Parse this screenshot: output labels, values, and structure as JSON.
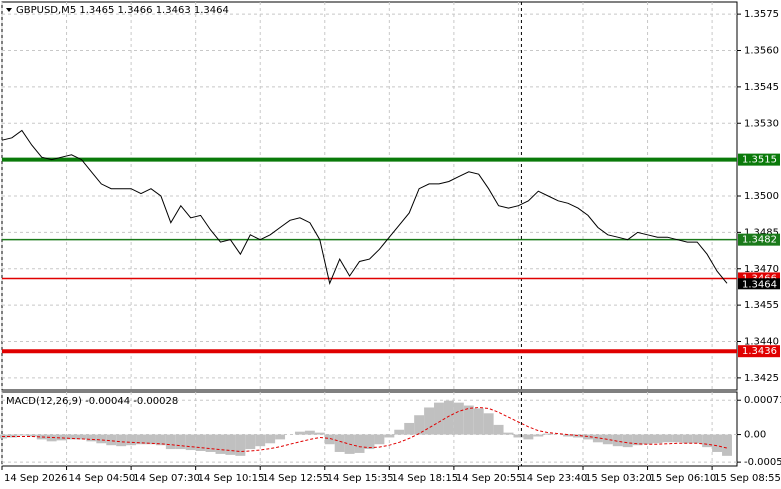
{
  "chart_data": {
    "type": "line",
    "title": "GBPUSD,M5  1.3465 1.3466 1.3463 1.3464",
    "color": "#000000",
    "grid": true,
    "xlim": [
      0,
      73
    ],
    "xticks": [
      {
        "value": 0,
        "label": "14 Sep 2026"
      },
      {
        "value": 6.5,
        "label": "14 Sep 04:50"
      },
      {
        "value": 13,
        "label": "14 Sep 07:30"
      },
      {
        "value": 19.5,
        "label": "14 Sep 10:15"
      },
      {
        "value": 26,
        "label": "14 Sep 12:55"
      },
      {
        "value": 32.5,
        "label": "14 Sep 15:35"
      },
      {
        "value": 39,
        "label": "14 Sep 18:15"
      },
      {
        "value": 45.5,
        "label": "14 Sep 20:55"
      },
      {
        "value": 52,
        "label": "14 Sep 23:40"
      },
      {
        "value": 58.5,
        "label": "15 Sep 03:20"
      },
      {
        "value": 65,
        "label": "15 Sep 06:10"
      },
      {
        "value": 71.5,
        "label": "15 Sep 08:55"
      }
    ],
    "ylim": [
      1.342,
      1.358
    ],
    "yticks": [
      1.3575,
      {
        "value": 1.356,
        "label": "1.3560"
      },
      1.3545,
      {
        "value": 1.353,
        "label": "1.3530"
      },
      {
        "value": 1.35,
        "label": "1.3500"
      },
      1.3485,
      {
        "value": 1.347,
        "label": "1.3470"
      },
      1.3455,
      {
        "value": 1.344,
        "label": "1.3440"
      },
      1.3425
    ],
    "vline_x": 52.3,
    "values": [
      1.3523,
      1.3524,
      1.3527,
      1.3521,
      1.3516,
      1.3515,
      1.3516,
      1.3517,
      1.3515,
      1.351,
      1.3505,
      1.3503,
      1.3503,
      1.3503,
      1.3501,
      1.3503,
      1.35,
      1.3489,
      1.3496,
      1.3491,
      1.3492,
      1.3486,
      1.3481,
      1.3482,
      1.3476,
      1.3484,
      1.3482,
      1.3484,
      1.3487,
      1.349,
      1.3491,
      1.3489,
      1.3482,
      1.3464,
      1.3474,
      1.3467,
      1.3473,
      1.3474,
      1.3478,
      1.3483,
      1.3488,
      1.3493,
      1.3503,
      1.3505,
      1.3505,
      1.3506,
      1.3508,
      1.351,
      1.3509,
      1.3503,
      1.3496,
      1.3495,
      1.3496,
      1.3498,
      1.3502,
      1.35,
      1.3498,
      1.3497,
      1.3495,
      1.3492,
      1.3487,
      1.3484,
      1.3483,
      1.3482,
      1.3485,
      1.3484,
      1.3483,
      1.3483,
      1.3482,
      1.3481,
      1.3481,
      1.3476,
      1.3469,
      1.3464
    ],
    "levels": [
      {
        "value": 1.3515,
        "color": "#0a7a0a",
        "width": 4
      },
      {
        "value": 1.3482,
        "color": "#1a7a1a",
        "width": 1.5
      },
      {
        "value": 1.3466,
        "color": "#e00000",
        "width": 1.5
      },
      {
        "value": 1.3436,
        "color": "#e00000",
        "width": 4
      }
    ],
    "current_price": 1.3464,
    "macd": {
      "title": "MACD(12,26,9) -0.00044 -0.00028",
      "ylim": [
        0.00088,
        -0.00065
      ],
      "yticks": [
        0.00071,
        {
          "value": 0,
          "label": "0.00"
        },
        -0.00057
      ],
      "histogram_color": "#c0c0c0",
      "signal_color": "#e00000",
      "histogram": [
        -8e-05,
        -6e-05,
        -2e-05,
        -4e-05,
        -0.0001,
        -0.00014,
        -0.00012,
        -0.0001,
        -0.0001,
        -0.00014,
        -0.00018,
        -0.00022,
        -0.00024,
        -0.00022,
        -0.0002,
        -0.0002,
        -0.00022,
        -0.0003,
        -0.0003,
        -0.00032,
        -0.00034,
        -0.00036,
        -0.0004,
        -0.00042,
        -0.00044,
        -0.0003,
        -0.00024,
        -0.00018,
        -0.0001,
        0,
        6e-05,
        8e-05,
        4e-05,
        -0.0002,
        -0.00036,
        -0.0004,
        -0.00038,
        -0.0003,
        -0.0002,
        -6e-05,
        0.0001,
        0.00024,
        0.0004,
        0.00056,
        0.00066,
        0.0007,
        0.00066,
        0.0006,
        0.00054,
        0.00044,
        0.0002,
        4e-05,
        -6e-05,
        -0.0001,
        -4e-05,
        2e-05,
        0,
        -4e-05,
        -6e-05,
        -0.0001,
        -0.00016,
        -0.0002,
        -0.00024,
        -0.00026,
        -0.00022,
        -0.0002,
        -0.00018,
        -0.00016,
        -0.00016,
        -0.00018,
        -0.00018,
        -0.00026,
        -0.00036,
        -0.00044
      ],
      "signal": [
        -4e-05,
        -4e-05,
        -4e-05,
        -4e-05,
        -5e-05,
        -6e-05,
        -7e-05,
        -8e-05,
        -9e-05,
        -0.0001,
        -0.00011,
        -0.00013,
        -0.00015,
        -0.00016,
        -0.00017,
        -0.00018,
        -0.00019,
        -0.00021,
        -0.00023,
        -0.00025,
        -0.00027,
        -0.00029,
        -0.00031,
        -0.00033,
        -0.00035,
        -0.00034,
        -0.00032,
        -0.00029,
        -0.00025,
        -0.0002,
        -0.00015,
        -0.0001,
        -6e-05,
        -8e-05,
        -0.00014,
        -0.0002,
        -0.00025,
        -0.00027,
        -0.00026,
        -0.00022,
        -0.00016,
        -8e-05,
        2e-05,
        0.00014,
        0.00026,
        0.00038,
        0.00048,
        0.00054,
        0.00056,
        0.00054,
        0.00046,
        0.00036,
        0.00026,
        0.00016,
        8e-05,
        4e-05,
        2e-05,
        0,
        -2e-05,
        -4e-05,
        -7e-05,
        -0.0001,
        -0.00014,
        -0.00017,
        -0.00019,
        -0.0002,
        -0.0002,
        -0.00019,
        -0.00018,
        -0.00018,
        -0.00018,
        -0.0002,
        -0.00023,
        -0.00028
      ]
    }
  }
}
